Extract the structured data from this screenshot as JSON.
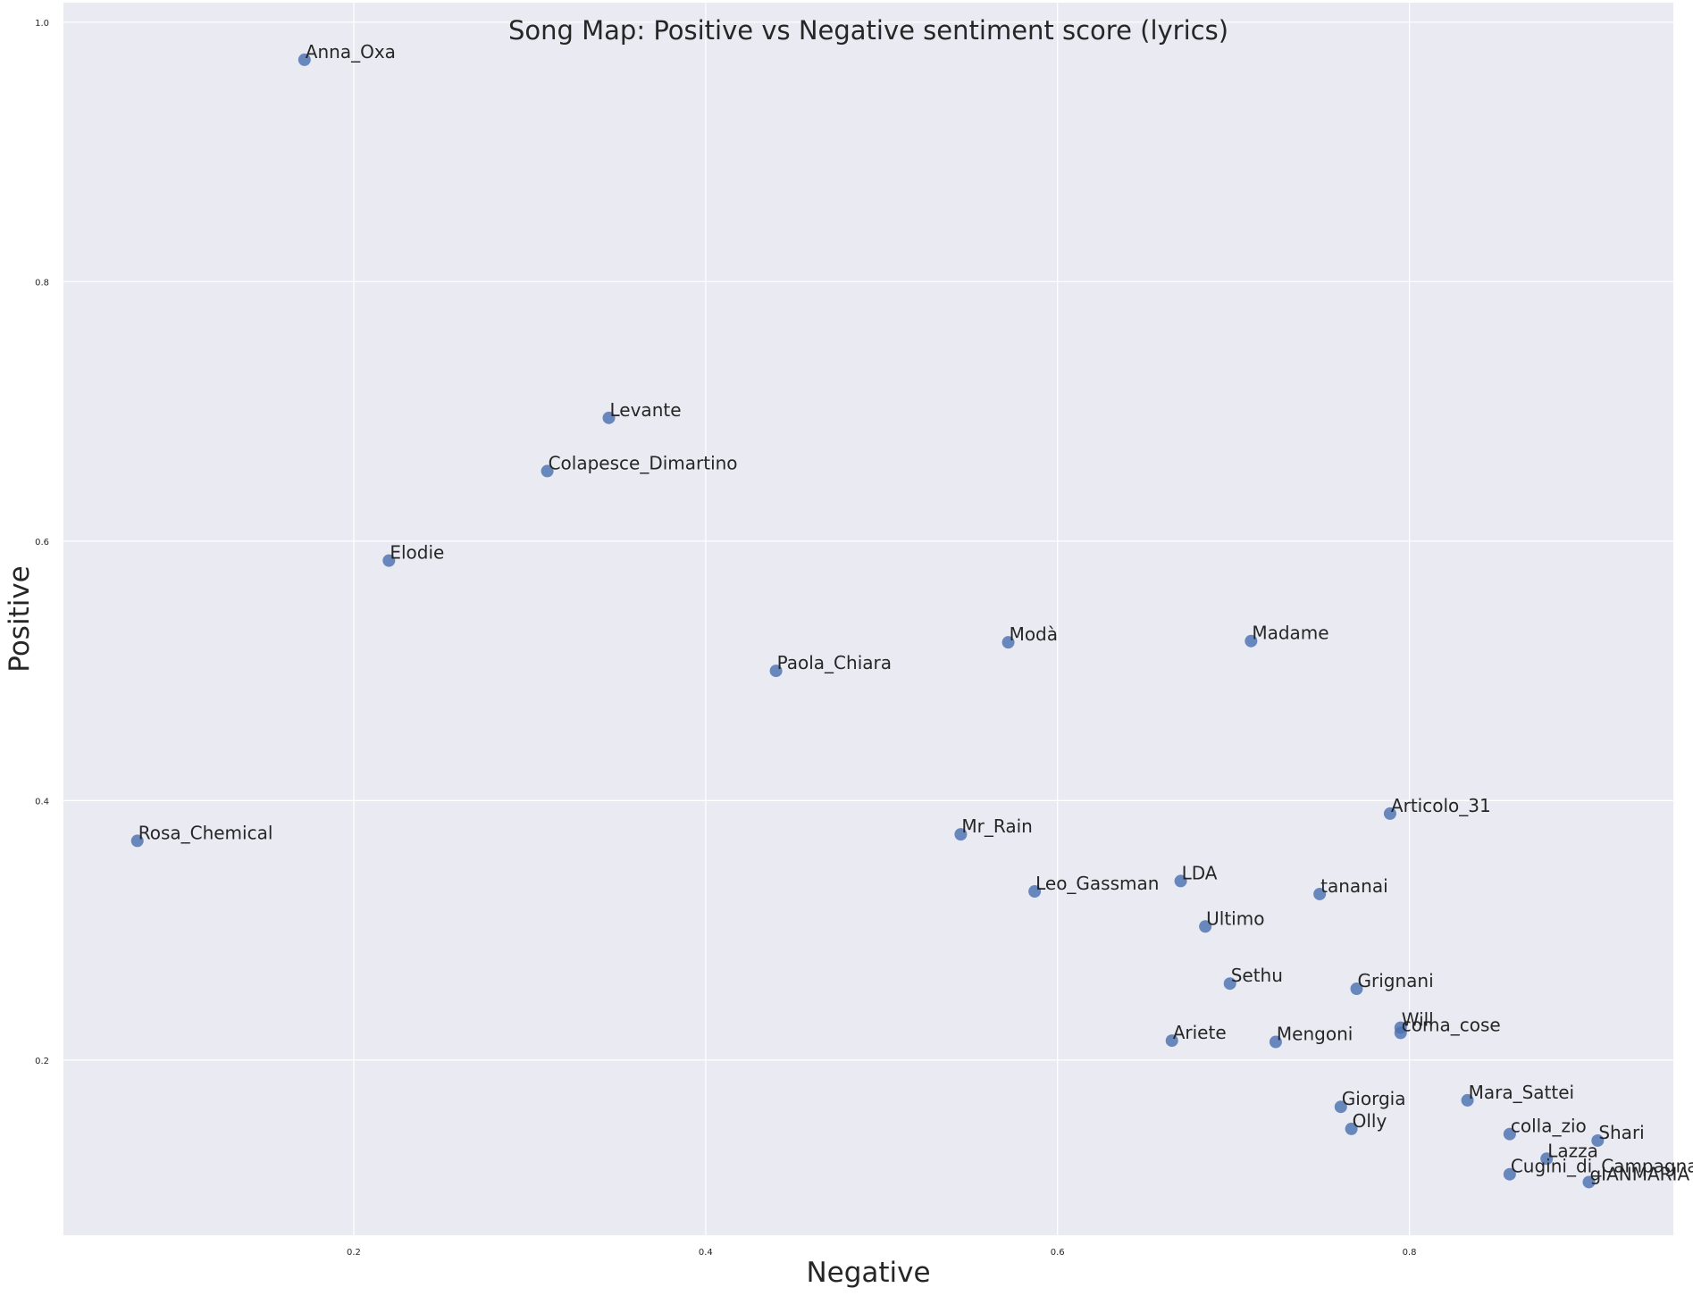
{
  "chart_data": {
    "type": "scatter",
    "title": "Song Map: Positive vs Negative sentiment score (lyrics)",
    "xlabel": "Negative",
    "ylabel": "Positive",
    "xlim": [
      0.035,
      0.95
    ],
    "ylim": [
      0.065,
      1.015
    ],
    "xticks": [
      0.2,
      0.4,
      0.6,
      0.8
    ],
    "yticks": [
      0.2,
      0.4,
      0.6,
      0.8,
      1.0
    ],
    "xtick_labels": [
      "0.2",
      "0.4",
      "0.6",
      "0.8"
    ],
    "ytick_labels": [
      "0.2",
      "0.4",
      "0.6",
      "0.8",
      "1.0"
    ],
    "grid": true,
    "colors": {
      "background": "#eaeaf2",
      "point": "#4c72b0",
      "grid": "#ffffff",
      "text": "#262626"
    },
    "points": [
      {
        "label": "Anna_Oxa",
        "x": 0.172,
        "y": 0.971
      },
      {
        "label": "Levante",
        "x": 0.345,
        "y": 0.695
      },
      {
        "label": "Colapesce_Dimartino",
        "x": 0.31,
        "y": 0.654
      },
      {
        "label": "Elodie",
        "x": 0.22,
        "y": 0.585
      },
      {
        "label": "Modà",
        "x": 0.572,
        "y": 0.522
      },
      {
        "label": "Madame",
        "x": 0.71,
        "y": 0.523
      },
      {
        "label": "Paola_Chiara",
        "x": 0.44,
        "y": 0.5
      },
      {
        "label": "Articolo_31",
        "x": 0.789,
        "y": 0.39
      },
      {
        "label": "Rosa_Chemical",
        "x": 0.077,
        "y": 0.369
      },
      {
        "label": "Mr_Rain",
        "x": 0.545,
        "y": 0.374
      },
      {
        "label": "Leo_Gassman",
        "x": 0.587,
        "y": 0.33
      },
      {
        "label": "LDA",
        "x": 0.67,
        "y": 0.338
      },
      {
        "label": "tananai",
        "x": 0.749,
        "y": 0.328
      },
      {
        "label": "Ultimo",
        "x": 0.684,
        "y": 0.303
      },
      {
        "label": "Sethu",
        "x": 0.698,
        "y": 0.259
      },
      {
        "label": "Grignani",
        "x": 0.77,
        "y": 0.255
      },
      {
        "label": "Will",
        "x": 0.795,
        "y": 0.225
      },
      {
        "label": "coma_cose",
        "x": 0.795,
        "y": 0.221
      },
      {
        "label": "Ariete",
        "x": 0.665,
        "y": 0.215
      },
      {
        "label": "Mengoni",
        "x": 0.724,
        "y": 0.214
      },
      {
        "label": "Mara_Sattei",
        "x": 0.833,
        "y": 0.169
      },
      {
        "label": "Giorgia",
        "x": 0.761,
        "y": 0.164
      },
      {
        "label": "Olly",
        "x": 0.767,
        "y": 0.147
      },
      {
        "label": "colla_zio",
        "x": 0.857,
        "y": 0.143
      },
      {
        "label": "Shari",
        "x": 0.907,
        "y": 0.138
      },
      {
        "label": "Lazza",
        "x": 0.878,
        "y": 0.124
      },
      {
        "label": "Cugini_di_Campagna",
        "x": 0.857,
        "y": 0.112
      },
      {
        "label": "gIANMARIA",
        "x": 0.902,
        "y": 0.106
      }
    ]
  }
}
